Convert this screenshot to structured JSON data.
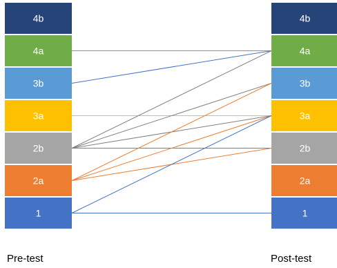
{
  "columns": {
    "left_title": "Pre-test",
    "right_title": "Post-test"
  },
  "levels": [
    {
      "id": "4b",
      "label": "4b",
      "color": "#264478"
    },
    {
      "id": "4a",
      "label": "4a",
      "color": "#70AD47"
    },
    {
      "id": "3b",
      "label": "3b",
      "color": "#5B9BD5"
    },
    {
      "id": "3a",
      "label": "3a",
      "color": "#FFC000"
    },
    {
      "id": "2b",
      "label": "2b",
      "color": "#A5A5A5"
    },
    {
      "id": "2a",
      "label": "2a",
      "color": "#ED7D31"
    },
    {
      "id": "1",
      "label": "1",
      "color": "#4472C4"
    }
  ],
  "transitions": [
    {
      "from": "4a",
      "to": "4a",
      "color": "#70AD47"
    },
    {
      "from": "3b",
      "to": "4a",
      "color": "#4472C4"
    },
    {
      "from": "3a",
      "to": "3a",
      "color": "#FFC000"
    },
    {
      "from": "2b",
      "to": "4a",
      "color": "#7F7F7F"
    },
    {
      "from": "2b",
      "to": "3b",
      "color": "#7F7F7F"
    },
    {
      "from": "2b",
      "to": "3a",
      "color": "#7F7F7F"
    },
    {
      "from": "2b",
      "to": "2b",
      "color": "#7F7F7F"
    },
    {
      "from": "2a",
      "to": "3b",
      "color": "#ED7D31"
    },
    {
      "from": "2a",
      "to": "3a",
      "color": "#ED7D31"
    },
    {
      "from": "2a",
      "to": "2b",
      "color": "#ED7D31"
    },
    {
      "from": "1",
      "to": "3a",
      "color": "#4472C4"
    },
    {
      "from": "1",
      "to": "1",
      "color": "#4472C4"
    }
  ]
}
